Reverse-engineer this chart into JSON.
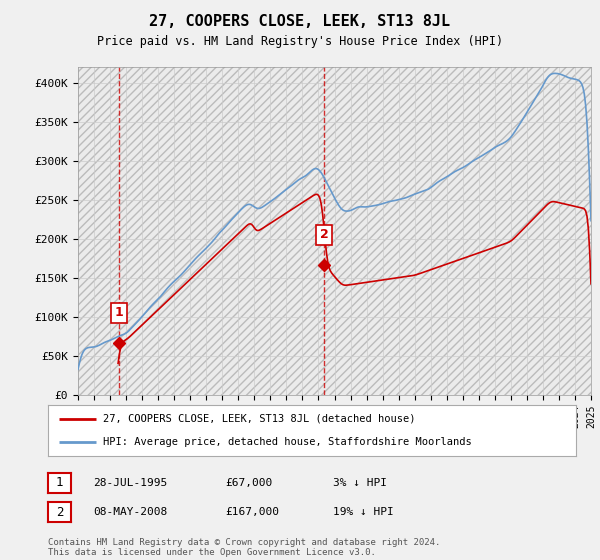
{
  "title": "27, COOPERS CLOSE, LEEK, ST13 8JL",
  "subtitle": "Price paid vs. HM Land Registry's House Price Index (HPI)",
  "ylim": [
    0,
    420000
  ],
  "yticks": [
    0,
    50000,
    100000,
    150000,
    200000,
    250000,
    300000,
    350000,
    400000
  ],
  "ytick_labels": [
    "£0",
    "£50K",
    "£100K",
    "£150K",
    "£200K",
    "£250K",
    "£300K",
    "£350K",
    "£400K"
  ],
  "hpi_color": "#6699cc",
  "price_color": "#cc0000",
  "vline_color": "#cc0000",
  "transaction1_year": 1995.57,
  "transaction1_price": 67000,
  "transaction2_year": 2008.36,
  "transaction2_price": 167000,
  "legend_label1": "27, COOPERS CLOSE, LEEK, ST13 8JL (detached house)",
  "legend_label2": "HPI: Average price, detached house, Staffordshire Moorlands",
  "table_row1": [
    "1",
    "28-JUL-1995",
    "£67,000",
    "3% ↓ HPI"
  ],
  "table_row2": [
    "2",
    "08-MAY-2008",
    "£167,000",
    "19% ↓ HPI"
  ],
  "footer": "Contains HM Land Registry data © Crown copyright and database right 2024.\nThis data is licensed under the Open Government Licence v3.0.",
  "xmin": 1993,
  "xmax": 2025
}
